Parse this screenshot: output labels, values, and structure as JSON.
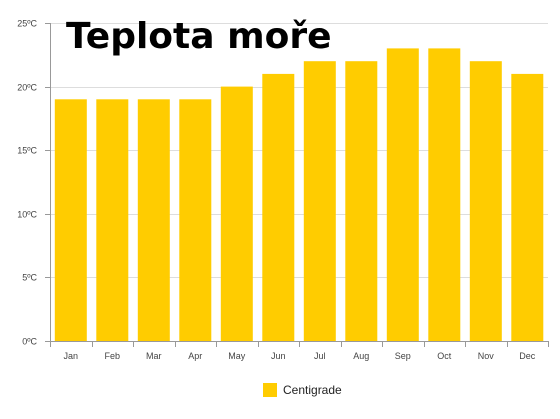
{
  "chart_data": {
    "type": "bar",
    "title": "Teplota moře",
    "xlabel": "",
    "ylabel": "",
    "categories": [
      "Jan",
      "Feb",
      "Mar",
      "Apr",
      "May",
      "Jun",
      "Jul",
      "Aug",
      "Sep",
      "Oct",
      "Nov",
      "Dec"
    ],
    "series": [
      {
        "name": "Centigrade",
        "color": "#FFCC00",
        "values": [
          19,
          19,
          19,
          19,
          20,
          21,
          22,
          22,
          23,
          23,
          22,
          21
        ]
      }
    ],
    "ylim": [
      0,
      25
    ],
    "yticks": [
      {
        "value": 0,
        "label": "0ºC"
      },
      {
        "value": 5,
        "label": "5ºC"
      },
      {
        "value": 10,
        "label": "10ºC"
      },
      {
        "value": 15,
        "label": "15ºC"
      },
      {
        "value": 20,
        "label": "20ºC"
      },
      {
        "value": 25,
        "label": "25ºC"
      }
    ],
    "grid": true,
    "legend_position": "bottom"
  }
}
